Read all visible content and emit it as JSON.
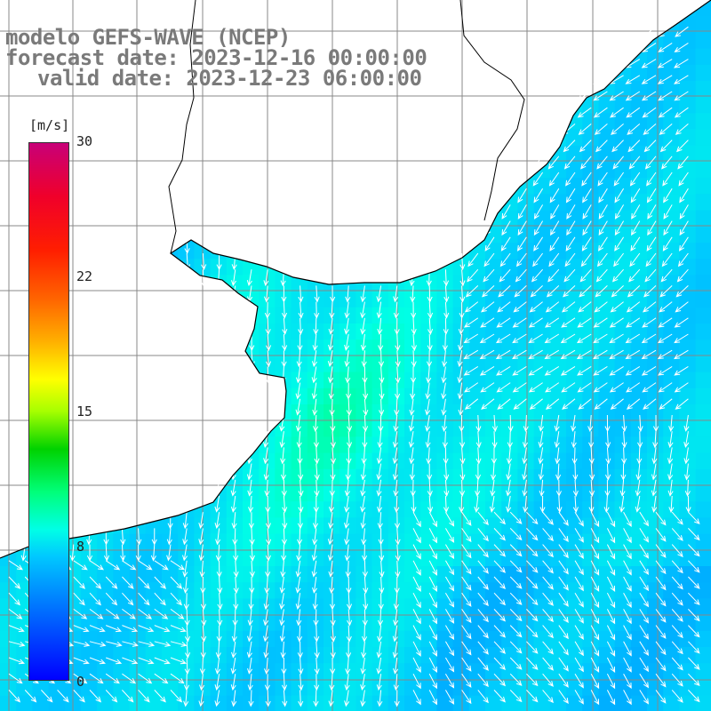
{
  "title": {
    "line1": "modelo GEFS-WAVE (NCEP)",
    "line2": "forecast date: 2023-12-16 00:00:00",
    "line3": "valid date: 2023-12-23 06:00:00"
  },
  "legend": {
    "unit": "[m/s]",
    "ticks": [
      "30",
      "22",
      "15",
      "8",
      "0"
    ],
    "min": 0,
    "max": 30,
    "colors": [
      "#0000ff",
      "#0078ff",
      "#00c8ff",
      "#00ffe6",
      "#00ff7a",
      "#00d200",
      "#a6ff00",
      "#ffff00",
      "#ffb000",
      "#ff6400",
      "#ff1e00",
      "#f0002a",
      "#c80078"
    ]
  },
  "map": {
    "variable": "wind speed with direction arrows",
    "speed_range_ms": [
      5,
      10
    ],
    "dominant_direction": "from north-northeast",
    "land_color": "#ffffff",
    "grid": true
  }
}
